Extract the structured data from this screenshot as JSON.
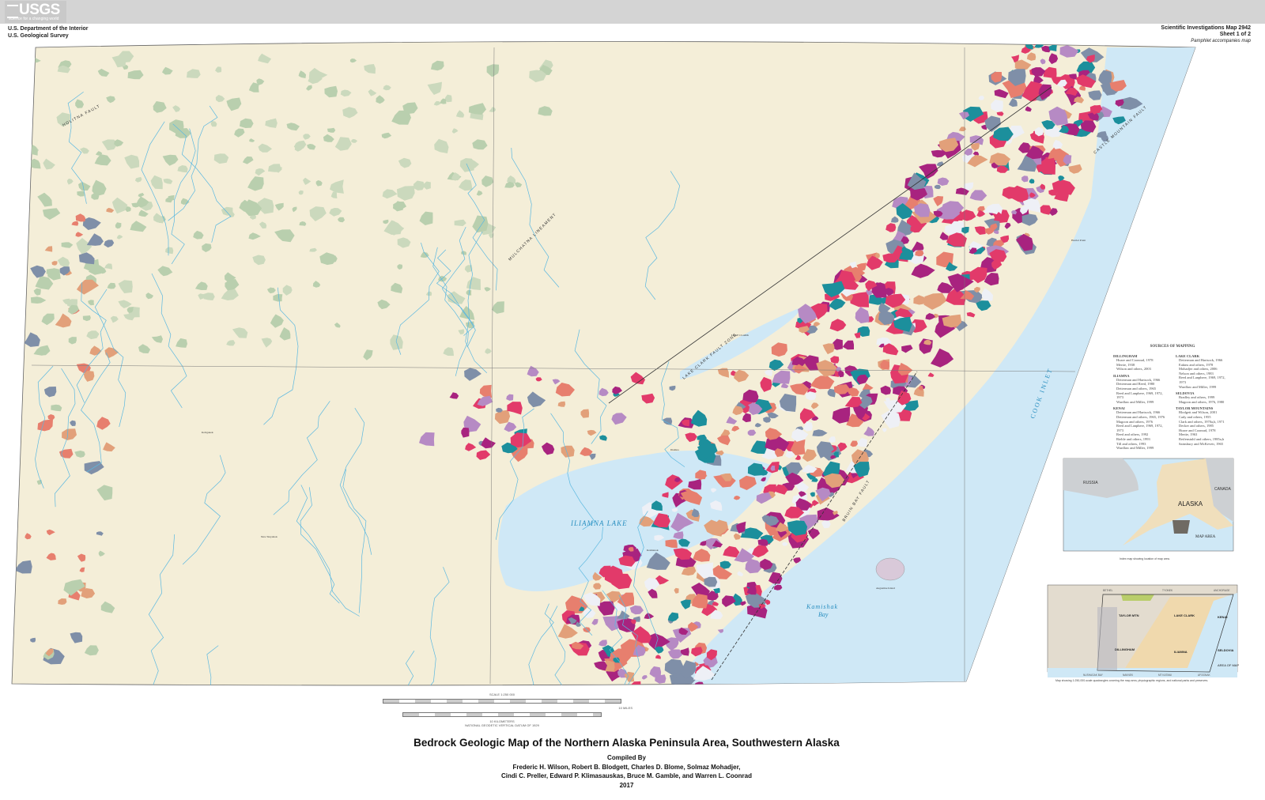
{
  "header": {
    "logo_text": "USGS",
    "logo_tagline": "science for a changing world",
    "agency_line1": "U.S. Department of the Interior",
    "agency_line2": "U.S. Geological Survey",
    "series": "Scientific Investigations Map 2942",
    "sheet": "Sheet 1 of 2",
    "pamphlet": "Pamphlet accompanies map"
  },
  "map": {
    "colors": {
      "land": "#f4eed8",
      "water": "#cfe8f6",
      "river": "#5bb8e0",
      "lowland_green": "#b9cfae",
      "red_pink": "#e23a6a",
      "magenta": "#a8237f",
      "teal": "#1c8f9c",
      "orange": "#e2a07a",
      "salmon": "#e77f6e",
      "gray_blue": "#7f8fa8",
      "snow": "#eef0f6",
      "lavender": "#b68ac4"
    },
    "labels": {
      "iliamna_lake": "ILIAMNA LAKE",
      "kamishak_bay_1": "Kamishak",
      "kamishak_bay_2": "Bay",
      "augustine_island": "Augustine Island",
      "cook_inlet": "COOK  INLET",
      "lake_clark_fault": "LAKE CLARK FAULT ZONE",
      "bruin_bay_fault": "BRUIN BAY FAULT",
      "castle_mountain_fault": "CASTLE MOUNTAIN FAULT",
      "mulchatna_lineament": "MULCHATNA LINEAMENT",
      "holitna_fault": "HOLITNA FAULT",
      "lake_clark": "LAKE CLARK",
      "harriet_point": "Harriet Point",
      "new_stuyahok": "New Stuyahok",
      "koliganek": "Koliganek",
      "kokhanok": "Kokhanok",
      "iliamna": "Iliamna"
    }
  },
  "scale": {
    "title": "SCALE 1:250 000",
    "miles": "10 MILES",
    "km": "10 KILOMETERS",
    "datum": "NATIONAL GEODETIC VERTICAL DATUM OF 1929"
  },
  "sources": {
    "title": "SOURCES OF MAPPING",
    "left": [
      {
        "quad": "DILLINGHAM",
        "entries": [
          "Hoare and Coonrad, 1978",
          "Mertie, 1938",
          "Wilson and others, 2003"
        ]
      },
      {
        "quad": "ILIAMNA",
        "entries": [
          "Detterman and Hartsock, 1966",
          "Detterman and Reed, 1980",
          "Detterman and others, 1965",
          "Reed and Lanphere, 1969, 1972, 1973",
          "Wardlaw and Miller, 1999"
        ]
      },
      {
        "quad": "KENAI",
        "entries": [
          "Detterman and Hartsock, 1966",
          "Detterman and others, 1965, 1976",
          "Magoon and others, 1976",
          "Reed and Lanphere, 1969, 1972, 1973",
          "Reed and others, 1992",
          "Riehle and others, 1993",
          "Till and others, 1993",
          "Wardlaw and Miller, 1999"
        ]
      }
    ],
    "right": [
      {
        "quad": "LAKE CLARK",
        "entries": [
          "Detterman and Hartsock, 1966",
          "Eakins and others, 1978",
          "Mohadjer and others, 2006",
          "Nelson and others, 1983",
          "Reed and Lanphere, 1969, 1972, 1973",
          "Wardlaw and Miller, 1999"
        ]
      },
      {
        "quad": "SELDOVIA",
        "entries": [
          "Bradley and others, 1999",
          "Magoon and others, 1976, 1980"
        ]
      },
      {
        "quad": "TAYLOR MOUNTAINS",
        "entries": [
          "Blodgett and Wilson, 2001",
          "Cady and others, 1955",
          "Clark and others, 1970a,b, 1971",
          "Decker and others, 1985",
          "Hoare and Coonrad, 1978",
          "Mertie, 1963",
          "Reifenstuhl and others, 1985a,b",
          "Sainsbury and McKevett, 1965"
        ]
      }
    ]
  },
  "index_map": {
    "russia": "RUSSIA",
    "alaska": "ALASKA",
    "canada": "CANADA",
    "map_area": "MAP AREA",
    "caption": "Index map showing location of map area."
  },
  "quad_map": {
    "taylor_mtn": "TAYLOR MTN",
    "lake_clark": "LAKE CLARK",
    "kenai": "KENAI",
    "dillingham": "DILLINGHAM",
    "iliamna": "ILIAMNA",
    "seldovia": "SELDOVIA",
    "area_of_map": "AREA OF MAP",
    "bethel": "BETHEL",
    "anchorage": "ANCHORAGE",
    "tyonek": "TYONEK",
    "nushagak_bay": "NUSHAGAK BAY",
    "naknek": "NAKNEK",
    "mt_katmai": "MT KATMAI",
    "afognak": "AFOGNAK",
    "caption": "Map showing 1:250,000-scale quadrangles covering the map area, physiographic regions, and national parks and preserves."
  },
  "title_block": {
    "title": "Bedrock Geologic Map of the Northern Alaska Peninsula Area, Southwestern Alaska",
    "compiled_by": "Compiled By",
    "authors_line1": "Frederic H. Wilson, Robert B. Blodgett, Charles D. Blome, Solmaz Mohadjer,",
    "authors_line2": "Cindi C. Preller, Edward P. Klimasauskas, Bruce M. Gamble, and Warren L. Coonrad",
    "year": "2017"
  }
}
